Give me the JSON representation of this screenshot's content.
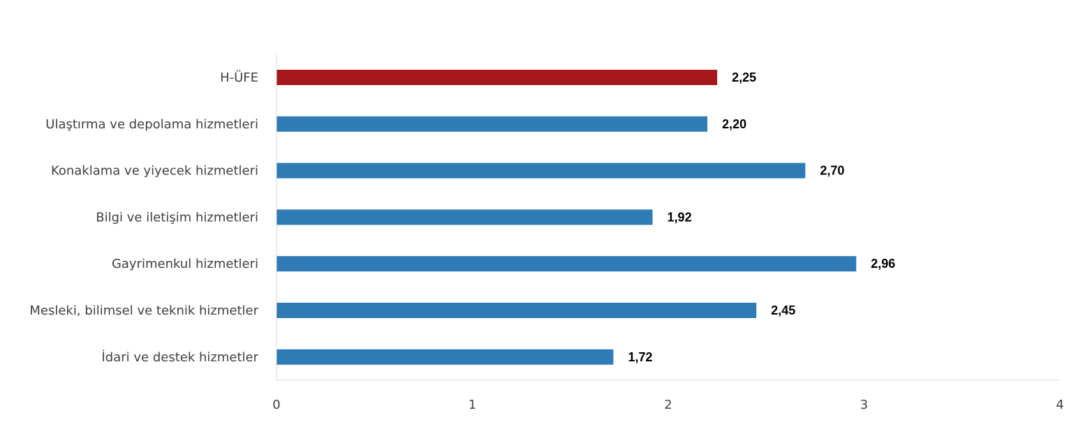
{
  "chart_data": {
    "type": "bar",
    "orientation": "horizontal",
    "categories": [
      "H-ÜFE",
      "Ulaştırma ve depolama hizmetleri",
      "Konaklama ve yiyecek hizmetleri",
      "Bilgi ve iletişim hizmetleri",
      "Gayrimenkul hizmetleri",
      "Mesleki, bilimsel ve teknik hizmetler",
      "İdari ve destek hizmetler"
    ],
    "values": [
      2.25,
      2.2,
      2.7,
      1.92,
      2.96,
      2.45,
      1.72
    ],
    "value_labels": [
      "2,25",
      "2,20",
      "2,70",
      "1,92",
      "2,96",
      "2,45",
      "1,72"
    ],
    "bar_colors": [
      "#A6171C",
      "#2E7BB5",
      "#2E7BB5",
      "#2E7BB5",
      "#2E7BB5",
      "#2E7BB5",
      "#2E7BB5"
    ],
    "xlim": [
      0,
      4
    ],
    "x_ticks": [
      "0",
      "1",
      "2",
      "3",
      "4"
    ],
    "grid": false,
    "legend": "none",
    "axis_color": "#D9D9D9"
  }
}
